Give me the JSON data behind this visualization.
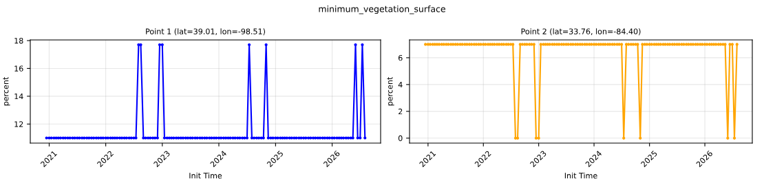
{
  "chart_data": [
    {
      "type": "line",
      "title": "Point 1 (lat=39.01, lon=-98.51)",
      "xlabel": "Init Time",
      "ylabel": "percent",
      "annotations": [
        "minimum_vegetation_surface"
      ],
      "x": [
        "2020-12-15",
        "2021-01-01",
        "2021-01-15",
        "2021-02-01",
        "2021-02-15",
        "2021-03-01",
        "2021-03-15",
        "2021-04-01",
        "2021-04-15",
        "2021-05-01",
        "2021-05-15",
        "2021-06-01",
        "2021-06-15",
        "2021-07-01",
        "2021-07-15",
        "2021-08-01",
        "2021-08-15",
        "2021-09-01",
        "2021-09-15",
        "2021-10-01",
        "2021-10-15",
        "2021-11-01",
        "2021-11-15",
        "2021-12-01",
        "2021-12-15",
        "2022-01-01",
        "2022-01-15",
        "2022-02-01",
        "2022-02-15",
        "2022-03-01",
        "2022-03-15",
        "2022-04-01",
        "2022-04-15",
        "2022-05-01",
        "2022-05-15",
        "2022-06-01",
        "2022-06-15",
        "2022-07-01",
        "2022-07-15",
        "2022-08-01",
        "2022-08-15",
        "2022-09-01",
        "2022-09-15",
        "2022-10-01",
        "2022-10-15",
        "2022-11-01",
        "2022-11-15",
        "2022-12-01",
        "2022-12-15",
        "2023-01-01",
        "2023-01-15",
        "2023-02-01",
        "2023-02-15",
        "2023-03-01",
        "2023-03-15",
        "2023-04-01",
        "2023-04-15",
        "2023-05-01",
        "2023-05-15",
        "2023-06-01",
        "2023-06-15",
        "2023-07-01",
        "2023-07-15",
        "2023-08-01",
        "2023-08-15",
        "2023-09-01",
        "2023-09-15",
        "2023-10-01",
        "2023-10-15",
        "2023-11-01",
        "2023-11-15",
        "2023-12-01",
        "2023-12-15",
        "2024-01-01",
        "2024-01-15",
        "2024-02-01",
        "2024-02-15",
        "2024-03-01",
        "2024-03-15",
        "2024-04-01",
        "2024-04-15",
        "2024-05-01",
        "2024-05-15",
        "2024-06-01",
        "2024-06-15",
        "2024-07-01",
        "2024-07-15",
        "2024-08-01",
        "2024-08-15",
        "2024-09-01",
        "2024-09-15",
        "2024-10-01",
        "2024-10-15",
        "2024-11-01",
        "2024-11-15",
        "2024-12-01",
        "2024-12-15",
        "2025-01-01",
        "2025-01-15",
        "2025-02-01",
        "2025-02-15",
        "2025-03-01",
        "2025-03-15",
        "2025-04-01",
        "2025-04-15",
        "2025-05-01",
        "2025-05-15",
        "2025-06-01",
        "2025-06-15",
        "2025-07-01",
        "2025-07-15",
        "2025-08-01",
        "2025-08-15",
        "2025-09-01",
        "2025-09-15",
        "2025-10-01",
        "2025-10-15",
        "2025-11-01",
        "2025-11-15",
        "2025-12-01",
        "2025-12-15",
        "2026-01-01",
        "2026-01-15",
        "2026-02-01",
        "2026-02-15",
        "2026-03-01",
        "2026-03-15",
        "2026-04-01",
        "2026-04-15",
        "2026-05-01",
        "2026-05-15",
        "2026-06-01",
        "2026-06-15",
        "2026-07-01",
        "2026-07-15",
        "2026-08-01"
      ],
      "series": [
        {
          "color": "#0000ff",
          "values": [
            11,
            11,
            11,
            11,
            11,
            11,
            11,
            11,
            11,
            11,
            11,
            11,
            11,
            11,
            11,
            11,
            11,
            11,
            11,
            11,
            11,
            11,
            11,
            11,
            11,
            11,
            11,
            11,
            11,
            11,
            11,
            11,
            11,
            11,
            11,
            11,
            11,
            11,
            11,
            17.7,
            17.7,
            11,
            11,
            11,
            11,
            11,
            11,
            11,
            17.7,
            17.7,
            11,
            11,
            11,
            11,
            11,
            11,
            11,
            11,
            11,
            11,
            11,
            11,
            11,
            11,
            11,
            11,
            11,
            11,
            11,
            11,
            11,
            11,
            11,
            11,
            11,
            11,
            11,
            11,
            11,
            11,
            11,
            11,
            11,
            11,
            11,
            11,
            17.7,
            11,
            11,
            11,
            11,
            11,
            11,
            17.7,
            11,
            11,
            11,
            11,
            11,
            11,
            11,
            11,
            11,
            11,
            11,
            11,
            11,
            11,
            11,
            11,
            11,
            11,
            11,
            11,
            11,
            11,
            11,
            11,
            11,
            11,
            11,
            11,
            11,
            11,
            11,
            11,
            11,
            11,
            11,
            11,
            11,
            17.7,
            11,
            11,
            17.7,
            11
          ]
        }
      ],
      "xlim": [
        "2020-09-01",
        "2026-11-10"
      ],
      "ylim": [
        10.63,
        18.05
      ],
      "xticks": [
        {
          "value": "2021-01-01",
          "label": "2021"
        },
        {
          "value": "2022-01-01",
          "label": "2022"
        },
        {
          "value": "2023-01-01",
          "label": "2023"
        },
        {
          "value": "2024-01-01",
          "label": "2024"
        },
        {
          "value": "2025-01-01",
          "label": "2025"
        },
        {
          "value": "2026-01-01",
          "label": "2026"
        }
      ],
      "yticks": [
        12,
        14,
        16,
        18
      ],
      "grid": true,
      "marker": "circle",
      "line_style": "solid"
    },
    {
      "type": "line",
      "title": "Point 2 (lat=33.76, lon=-84.40)",
      "xlabel": "Init Time",
      "ylabel": "percent",
      "x": [
        "2020-12-15",
        "2021-01-01",
        "2021-01-15",
        "2021-02-01",
        "2021-02-15",
        "2021-03-01",
        "2021-03-15",
        "2021-04-01",
        "2021-04-15",
        "2021-05-01",
        "2021-05-15",
        "2021-06-01",
        "2021-06-15",
        "2021-07-01",
        "2021-07-15",
        "2021-08-01",
        "2021-08-15",
        "2021-09-01",
        "2021-09-15",
        "2021-10-01",
        "2021-10-15",
        "2021-11-01",
        "2021-11-15",
        "2021-12-01",
        "2021-12-15",
        "2022-01-01",
        "2022-01-15",
        "2022-02-01",
        "2022-02-15",
        "2022-03-01",
        "2022-03-15",
        "2022-04-01",
        "2022-04-15",
        "2022-05-01",
        "2022-05-15",
        "2022-06-01",
        "2022-06-15",
        "2022-07-01",
        "2022-07-15",
        "2022-08-01",
        "2022-08-15",
        "2022-09-01",
        "2022-09-15",
        "2022-10-01",
        "2022-10-15",
        "2022-11-01",
        "2022-11-15",
        "2022-12-01",
        "2022-12-15",
        "2023-01-01",
        "2023-01-15",
        "2023-02-01",
        "2023-02-15",
        "2023-03-01",
        "2023-03-15",
        "2023-04-01",
        "2023-04-15",
        "2023-05-01",
        "2023-05-15",
        "2023-06-01",
        "2023-06-15",
        "2023-07-01",
        "2023-07-15",
        "2023-08-01",
        "2023-08-15",
        "2023-09-01",
        "2023-09-15",
        "2023-10-01",
        "2023-10-15",
        "2023-11-01",
        "2023-11-15",
        "2023-12-01",
        "2023-12-15",
        "2024-01-01",
        "2024-01-15",
        "2024-02-01",
        "2024-02-15",
        "2024-03-01",
        "2024-03-15",
        "2024-04-01",
        "2024-04-15",
        "2024-05-01",
        "2024-05-15",
        "2024-06-01",
        "2024-06-15",
        "2024-07-01",
        "2024-07-15",
        "2024-08-01",
        "2024-08-15",
        "2024-09-01",
        "2024-09-15",
        "2024-10-01",
        "2024-10-15",
        "2024-11-01",
        "2024-11-15",
        "2024-12-01",
        "2024-12-15",
        "2025-01-01",
        "2025-01-15",
        "2025-02-01",
        "2025-02-15",
        "2025-03-01",
        "2025-03-15",
        "2025-04-01",
        "2025-04-15",
        "2025-05-01",
        "2025-05-15",
        "2025-06-01",
        "2025-06-15",
        "2025-07-01",
        "2025-07-15",
        "2025-08-01",
        "2025-08-15",
        "2025-09-01",
        "2025-09-15",
        "2025-10-01",
        "2025-10-15",
        "2025-11-01",
        "2025-11-15",
        "2025-12-01",
        "2025-12-15",
        "2026-01-01",
        "2026-01-15",
        "2026-02-01",
        "2026-02-15",
        "2026-03-01",
        "2026-03-15",
        "2026-04-01",
        "2026-04-15",
        "2026-05-01",
        "2026-05-15",
        "2026-06-01",
        "2026-06-15",
        "2026-07-01",
        "2026-07-15",
        "2026-08-01"
      ],
      "series": [
        {
          "color": "#ffa500",
          "values": [
            7,
            7,
            7,
            7,
            7,
            7,
            7,
            7,
            7,
            7,
            7,
            7,
            7,
            7,
            7,
            7,
            7,
            7,
            7,
            7,
            7,
            7,
            7,
            7,
            7,
            7,
            7,
            7,
            7,
            7,
            7,
            7,
            7,
            7,
            7,
            7,
            7,
            7,
            7,
            0,
            0,
            7,
            7,
            7,
            7,
            7,
            7,
            7,
            0,
            0,
            7,
            7,
            7,
            7,
            7,
            7,
            7,
            7,
            7,
            7,
            7,
            7,
            7,
            7,
            7,
            7,
            7,
            7,
            7,
            7,
            7,
            7,
            7,
            7,
            7,
            7,
            7,
            7,
            7,
            7,
            7,
            7,
            7,
            7,
            7,
            7,
            0,
            7,
            7,
            7,
            7,
            7,
            7,
            0,
            7,
            7,
            7,
            7,
            7,
            7,
            7,
            7,
            7,
            7,
            7,
            7,
            7,
            7,
            7,
            7,
            7,
            7,
            7,
            7,
            7,
            7,
            7,
            7,
            7,
            7,
            7,
            7,
            7,
            7,
            7,
            7,
            7,
            7,
            7,
            7,
            7,
            0,
            7,
            7,
            0,
            7
          ]
        }
      ],
      "xlim": [
        "2020-09-01",
        "2026-11-10"
      ],
      "ylim": [
        -0.37,
        7.33
      ],
      "xticks": [
        {
          "value": "2021-01-01",
          "label": "2021"
        },
        {
          "value": "2022-01-01",
          "label": "2022"
        },
        {
          "value": "2023-01-01",
          "label": "2023"
        },
        {
          "value": "2024-01-01",
          "label": "2024"
        },
        {
          "value": "2025-01-01",
          "label": "2025"
        },
        {
          "value": "2026-01-01",
          "label": "2026"
        }
      ],
      "yticks": [
        0,
        2,
        4,
        6
      ],
      "grid": true,
      "marker": "circle",
      "line_style": "solid"
    }
  ]
}
